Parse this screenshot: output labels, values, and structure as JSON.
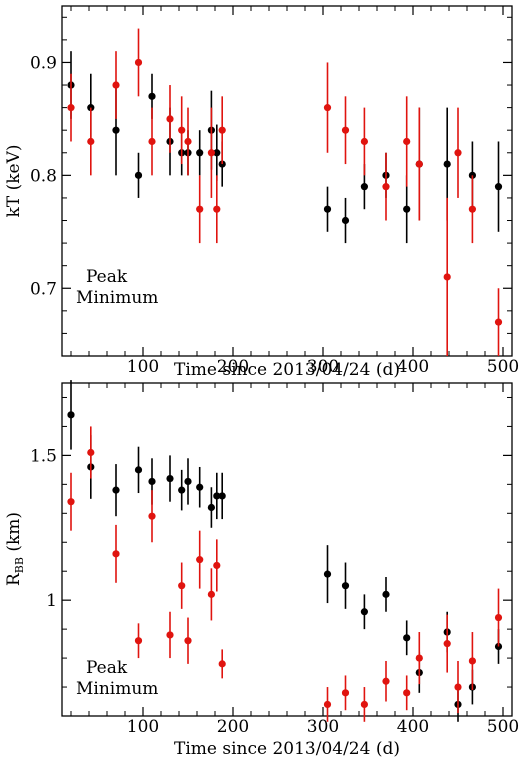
{
  "chart_data": [
    {
      "type": "scatter",
      "panel": "top",
      "xlabel": "Time since 2013/04/24 (d)",
      "ylabel": "kT (keV)",
      "xlim": [
        10,
        510
      ],
      "ylim": [
        0.64,
        0.95
      ],
      "xticks": [
        100,
        200,
        300,
        400,
        500
      ],
      "yticks": [
        0.7,
        0.8,
        0.9
      ],
      "ytick_labels": [
        "0.7",
        "0.8",
        "0.9"
      ],
      "legend_placement": "bottom-left",
      "series": [
        {
          "name": "Peak",
          "color": "#000000",
          "points": [
            {
              "x": 20,
              "y": 0.88,
              "err": 0.03
            },
            {
              "x": 42,
              "y": 0.86,
              "err": 0.03
            },
            {
              "x": 70,
              "y": 0.84,
              "err": 0.04
            },
            {
              "x": 95,
              "y": 0.8,
              "err": 0.02
            },
            {
              "x": 110,
              "y": 0.87,
              "err": 0.02
            },
            {
              "x": 130,
              "y": 0.83,
              "err": 0.03
            },
            {
              "x": 143,
              "y": 0.82,
              "err": 0.02
            },
            {
              "x": 150,
              "y": 0.82,
              "err": 0.02
            },
            {
              "x": 163,
              "y": 0.82,
              "err": 0.02
            },
            {
              "x": 176,
              "y": 0.84,
              "err": 0.035
            },
            {
              "x": 182,
              "y": 0.82,
              "err": 0.025
            },
            {
              "x": 188,
              "y": 0.81,
              "err": 0.02
            },
            {
              "x": 305,
              "y": 0.77,
              "err": 0.02
            },
            {
              "x": 325,
              "y": 0.76,
              "err": 0.02
            },
            {
              "x": 346,
              "y": 0.79,
              "err": 0.02
            },
            {
              "x": 370,
              "y": 0.8,
              "err": 0.02
            },
            {
              "x": 393,
              "y": 0.77,
              "err": 0.03
            },
            {
              "x": 407,
              "y": 0.81,
              "err": 0.05
            },
            {
              "x": 438,
              "y": 0.81,
              "err": 0.05
            },
            {
              "x": 466,
              "y": 0.8,
              "err": 0.03
            },
            {
              "x": 495,
              "y": 0.79,
              "err": 0.04
            }
          ]
        },
        {
          "name": "Minimum",
          "color": "#e0140f",
          "points": [
            {
              "x": 20,
              "y": 0.86,
              "err": 0.03
            },
            {
              "x": 42,
              "y": 0.83,
              "err": 0.03
            },
            {
              "x": 70,
              "y": 0.88,
              "err": 0.03
            },
            {
              "x": 95,
              "y": 0.9,
              "err": 0.03
            },
            {
              "x": 110,
              "y": 0.83,
              "err": 0.03
            },
            {
              "x": 130,
              "y": 0.85,
              "err": 0.03
            },
            {
              "x": 143,
              "y": 0.84,
              "err": 0.03
            },
            {
              "x": 150,
              "y": 0.83,
              "err": 0.03
            },
            {
              "x": 163,
              "y": 0.77,
              "err": 0.03
            },
            {
              "x": 176,
              "y": 0.82,
              "err": 0.04
            },
            {
              "x": 182,
              "y": 0.77,
              "err": 0.03
            },
            {
              "x": 188,
              "y": 0.84,
              "err": 0.03
            },
            {
              "x": 305,
              "y": 0.86,
              "err": 0.04
            },
            {
              "x": 325,
              "y": 0.84,
              "err": 0.03
            },
            {
              "x": 346,
              "y": 0.83,
              "err": 0.03
            },
            {
              "x": 370,
              "y": 0.79,
              "err": 0.03
            },
            {
              "x": 393,
              "y": 0.83,
              "err": 0.04
            },
            {
              "x": 407,
              "y": 0.81,
              "err": 0.05
            },
            {
              "x": 438,
              "y": 0.71,
              "err": 0.07
            },
            {
              "x": 450,
              "y": 0.82,
              "err": 0.04
            },
            {
              "x": 466,
              "y": 0.77,
              "err": 0.03
            },
            {
              "x": 495,
              "y": 0.67,
              "err": 0.03
            }
          ]
        }
      ]
    },
    {
      "type": "scatter",
      "panel": "bottom",
      "xlabel": "Time since 2013/04/24 (d)",
      "ylabel": "R",
      "ylabel_sub": "BB",
      "ylabel_unit": " (km)",
      "xlim": [
        10,
        510
      ],
      "ylim": [
        0.6,
        1.75
      ],
      "xticks": [
        100,
        200,
        300,
        400,
        500
      ],
      "yticks": [
        1.0,
        1.5
      ],
      "ytick_labels": [
        "1",
        "1.5"
      ],
      "legend_placement": "bottom-left",
      "series": [
        {
          "name": "Peak",
          "color": "#000000",
          "points": [
            {
              "x": 20,
              "y": 1.64,
              "err": 0.12
            },
            {
              "x": 42,
              "y": 1.46,
              "err": 0.11
            },
            {
              "x": 70,
              "y": 1.38,
              "err": 0.09
            },
            {
              "x": 95,
              "y": 1.45,
              "err": 0.08
            },
            {
              "x": 110,
              "y": 1.41,
              "err": 0.08
            },
            {
              "x": 130,
              "y": 1.42,
              "err": 0.08
            },
            {
              "x": 143,
              "y": 1.38,
              "err": 0.07
            },
            {
              "x": 150,
              "y": 1.41,
              "err": 0.08
            },
            {
              "x": 163,
              "y": 1.39,
              "err": 0.07
            },
            {
              "x": 176,
              "y": 1.32,
              "err": 0.07
            },
            {
              "x": 182,
              "y": 1.36,
              "err": 0.08
            },
            {
              "x": 188,
              "y": 1.36,
              "err": 0.08
            },
            {
              "x": 305,
              "y": 1.09,
              "err": 0.1
            },
            {
              "x": 325,
              "y": 1.05,
              "err": 0.08
            },
            {
              "x": 346,
              "y": 0.96,
              "err": 0.06
            },
            {
              "x": 370,
              "y": 1.02,
              "err": 0.06
            },
            {
              "x": 393,
              "y": 0.87,
              "err": 0.06
            },
            {
              "x": 407,
              "y": 0.75,
              "err": 0.07
            },
            {
              "x": 438,
              "y": 0.89,
              "err": 0.07
            },
            {
              "x": 450,
              "y": 0.64,
              "err": 0.06
            },
            {
              "x": 466,
              "y": 0.7,
              "err": 0.06
            },
            {
              "x": 495,
              "y": 0.84,
              "err": 0.06
            }
          ]
        },
        {
          "name": "Minimum",
          "color": "#e0140f",
          "points": [
            {
              "x": 20,
              "y": 1.34,
              "err": 0.1
            },
            {
              "x": 42,
              "y": 1.51,
              "err": 0.09
            },
            {
              "x": 70,
              "y": 1.16,
              "err": 0.1
            },
            {
              "x": 95,
              "y": 0.86,
              "err": 0.06
            },
            {
              "x": 110,
              "y": 1.29,
              "err": 0.09
            },
            {
              "x": 130,
              "y": 0.88,
              "err": 0.08
            },
            {
              "x": 143,
              "y": 1.05,
              "err": 0.08
            },
            {
              "x": 150,
              "y": 0.86,
              "err": 0.08
            },
            {
              "x": 163,
              "y": 1.14,
              "err": 0.1
            },
            {
              "x": 176,
              "y": 1.02,
              "err": 0.09
            },
            {
              "x": 182,
              "y": 1.12,
              "err": 0.09
            },
            {
              "x": 188,
              "y": 0.78,
              "err": 0.05
            },
            {
              "x": 305,
              "y": 0.64,
              "err": 0.06
            },
            {
              "x": 325,
              "y": 0.68,
              "err": 0.06
            },
            {
              "x": 346,
              "y": 0.64,
              "err": 0.06
            },
            {
              "x": 370,
              "y": 0.72,
              "err": 0.07
            },
            {
              "x": 393,
              "y": 0.68,
              "err": 0.06
            },
            {
              "x": 407,
              "y": 0.8,
              "err": 0.09
            },
            {
              "x": 438,
              "y": 0.85,
              "err": 0.1
            },
            {
              "x": 450,
              "y": 0.7,
              "err": 0.09
            },
            {
              "x": 466,
              "y": 0.79,
              "err": 0.1
            },
            {
              "x": 495,
              "y": 0.94,
              "err": 0.1
            }
          ]
        }
      ]
    }
  ]
}
